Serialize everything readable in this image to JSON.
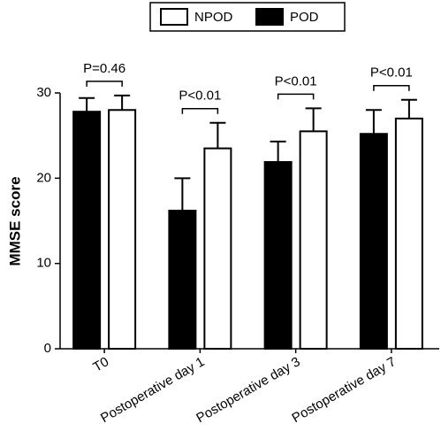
{
  "chart_data": {
    "type": "bar",
    "y_label": "MMSE score",
    "categories": [
      "T0",
      "Postoperative day 1",
      "Postoperative day 3",
      "Postoperative day 7"
    ],
    "series": [
      {
        "name": "NPOD",
        "color": "#ffffff",
        "values": [
          28.0,
          23.5,
          25.5,
          27.0
        ],
        "errors": [
          1.7,
          3.0,
          2.7,
          2.2
        ]
      },
      {
        "name": "POD",
        "color": "#000000",
        "values": [
          27.8,
          16.2,
          21.9,
          25.2
        ],
        "errors": [
          1.6,
          3.8,
          2.4,
          2.8
        ]
      }
    ],
    "annotations": [
      "P=0.46",
      "P<0.01",
      "P<0.01",
      "P<0.01"
    ],
    "ylim": [
      0,
      30
    ],
    "yticks": [
      0,
      10,
      20,
      30
    ],
    "grid": false,
    "legend": "top"
  }
}
